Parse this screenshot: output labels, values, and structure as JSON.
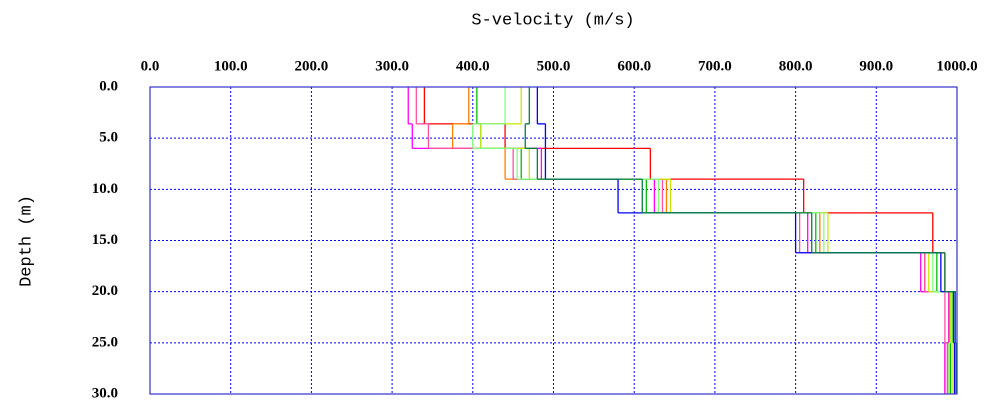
{
  "chart_data": {
    "type": "step",
    "x_label": "S-velocity (m/s)",
    "y_label": "Depth (m)",
    "xlim": [
      0,
      1000
    ],
    "xticks": [
      {
        "value": 0,
        "label": "0.0"
      },
      {
        "value": 100,
        "label": "100.0"
      },
      {
        "value": 200,
        "label": "200.0"
      },
      {
        "value": 300,
        "label": "300.0"
      },
      {
        "value": 400,
        "label": "400.0"
      },
      {
        "value": 500,
        "label": "500.0"
      },
      {
        "value": 600,
        "label": "600.0"
      },
      {
        "value": 700,
        "label": "700.0"
      },
      {
        "value": 800,
        "label": "800.0"
      },
      {
        "value": 900,
        "label": "900.0"
      },
      {
        "value": 1000,
        "label": "1000.0"
      }
    ],
    "ylim": [
      0,
      30
    ],
    "y_inverted": true,
    "yticks": [
      {
        "value": 0,
        "label": "0.0"
      },
      {
        "value": 5,
        "label": "5.0"
      },
      {
        "value": 10,
        "label": "10.0"
      },
      {
        "value": 15,
        "label": "15.0"
      },
      {
        "value": 20,
        "label": "20.0"
      },
      {
        "value": 25,
        "label": "25.0"
      },
      {
        "value": 30,
        "label": "30.0"
      }
    ],
    "grid": true,
    "grid_color": "#0000ff",
    "frame_color": "#3333cc",
    "depth_bounds": [
      0,
      3.6,
      6.0,
      9.0,
      12.3,
      16.2,
      20.0,
      25.0,
      30.0
    ],
    "series": [
      {
        "color": "#ff0000",
        "values": [
          340,
          440,
          620,
          810,
          970,
          985,
          990,
          990
        ]
      },
      {
        "color": "#ff8000",
        "values": [
          395,
          375,
          440,
          640,
          830,
          960,
          990,
          985
        ]
      },
      {
        "color": "#ff00ff",
        "values": [
          320,
          325,
          485,
          625,
          815,
          955,
          990,
          985
        ]
      },
      {
        "color": "#ff4fa0",
        "values": [
          330,
          345,
          450,
          635,
          805,
          960,
          985,
          988
        ]
      },
      {
        "color": "#00c000",
        "values": [
          405,
          410,
          460,
          615,
          825,
          975,
          995,
          992
        ]
      },
      {
        "color": "#c8e800",
        "values": [
          460,
          410,
          470,
          645,
          840,
          965,
          992,
          995
        ]
      },
      {
        "color": "#80ff80",
        "values": [
          440,
          400,
          455,
          630,
          835,
          970,
          993,
          990
        ]
      },
      {
        "color": "#0000ff",
        "values": [
          480,
          490,
          490,
          580,
          800,
          980,
          996,
          997
        ]
      },
      {
        "color": "#008040",
        "values": [
          470,
          465,
          480,
          610,
          820,
          985,
          998,
          999
        ]
      }
    ]
  }
}
